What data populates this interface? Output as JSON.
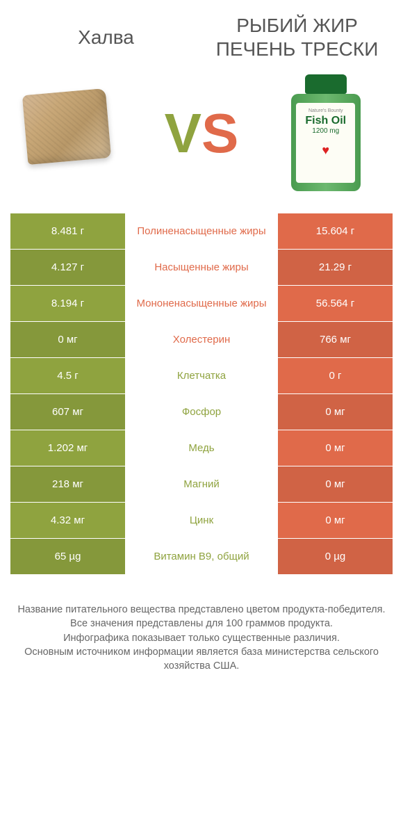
{
  "colors": {
    "green": "#8fa33f",
    "orange": "#e06a4a",
    "row_alt_darken": 0.93,
    "text_green": "#8fa33f",
    "text_orange": "#e06a4a",
    "white": "#ffffff",
    "footer": "#666666"
  },
  "header": {
    "left": "Халва",
    "right": "РЫБИЙ ЖИР ПЕЧЕНЬ ТРЕСКИ"
  },
  "vs": {
    "v": "V",
    "s": "S"
  },
  "bottle": {
    "brand": "Nature's Bounty",
    "main": "Fish Oil",
    "dose": "1200 mg"
  },
  "rows": [
    {
      "left": "8.481 г",
      "label": "Полиненасыщенные жиры",
      "right": "15.604 г",
      "winner": "right"
    },
    {
      "left": "4.127 г",
      "label": "Насыщенные жиры",
      "right": "21.29 г",
      "winner": "right"
    },
    {
      "left": "8.194 г",
      "label": "Мононенасыщенные жиры",
      "right": "56.564 г",
      "winner": "right"
    },
    {
      "left": "0 мг",
      "label": "Холестерин",
      "right": "766 мг",
      "winner": "right"
    },
    {
      "left": "4.5 г",
      "label": "Клетчатка",
      "right": "0 г",
      "winner": "left"
    },
    {
      "left": "607 мг",
      "label": "Фосфор",
      "right": "0 мг",
      "winner": "left"
    },
    {
      "left": "1.202 мг",
      "label": "Медь",
      "right": "0 мг",
      "winner": "left"
    },
    {
      "left": "218 мг",
      "label": "Магний",
      "right": "0 мг",
      "winner": "left"
    },
    {
      "left": "4.32 мг",
      "label": "Цинк",
      "right": "0 мг",
      "winner": "left"
    },
    {
      "left": "65 µg",
      "label": "Витамин B9, общий",
      "right": "0 µg",
      "winner": "left"
    }
  ],
  "footer": [
    "Название питательного вещества представлено цветом продукта-победителя.",
    "Все значения представлены для 100 граммов продукта.",
    "Инфографика показывает только существенные различия.",
    "Основным источником информации является база министерства сельского хозяйства США."
  ]
}
